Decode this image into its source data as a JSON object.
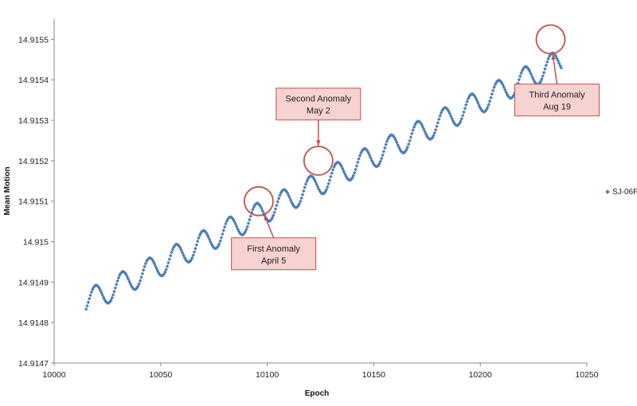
{
  "chart_data": {
    "type": "scatter",
    "title": "",
    "xlabel": "Epoch",
    "ylabel": "Mean Motion",
    "xlim": [
      10000,
      10250
    ],
    "ylim": [
      14.9147,
      14.91555
    ],
    "x_ticks": [
      "10000",
      "10050",
      "10100",
      "10150",
      "10200",
      "10250"
    ],
    "y_ticks": [
      "14.9147",
      "14.9148",
      "14.9149",
      "14.915",
      "14.9151",
      "14.9152",
      "14.9153",
      "14.9154",
      "14.9155"
    ],
    "grid": false,
    "legend_position": "right",
    "series": [
      {
        "name": "SJ-06F",
        "color": "#4a7ebb",
        "x_start": 10015,
        "x_end": 10238,
        "trend": {
          "y_at_10015": 14.91485,
          "slope_per_epoch": 2.68e-06
        },
        "oscillation": {
          "amplitude": 3e-05,
          "period_epochs": 12.6
        }
      }
    ],
    "annotations": [
      {
        "label_line1": "First Anomaly",
        "label_line2": "April 5",
        "circle_x": 10096,
        "circle_y": 14.9151,
        "box_epoch": 10103,
        "box_value": 14.91497
      },
      {
        "label_line1": "Second Anomaly",
        "label_line2": "May  2",
        "circle_x": 10124,
        "circle_y": 14.9152,
        "box_epoch": 10124,
        "box_value": 14.91534
      },
      {
        "label_line1": "Third Anomaly",
        "label_line2": "Aug 19",
        "circle_x": 10233,
        "circle_y": 14.9155,
        "box_epoch": 10236,
        "box_value": 14.91535
      }
    ]
  }
}
